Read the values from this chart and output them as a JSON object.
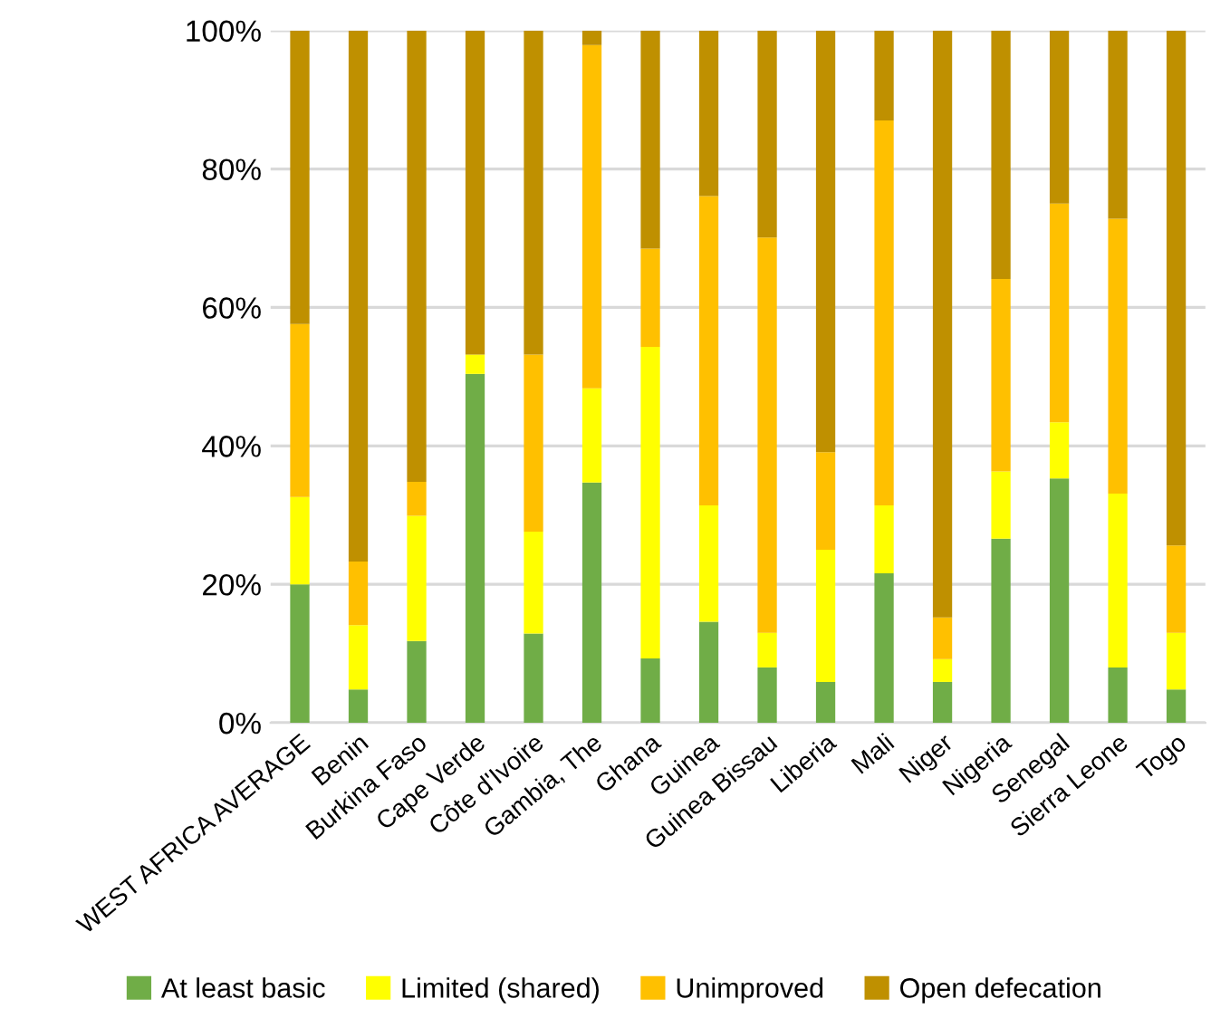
{
  "chart_data": {
    "type": "bar",
    "stacked": true,
    "categories": [
      "WEST AFRICA AVERAGE",
      "Benin",
      "Burkina Faso",
      "Cape Verde",
      "Côte d'Ivoire",
      "Gambia, The",
      "Ghana",
      "Guinea",
      "Guinea Bissau",
      "Liberia",
      "Mali",
      "Niger",
      "Nigeria",
      "Senegal",
      "Sierra Leone",
      "Togo"
    ],
    "series": [
      {
        "name": "At least basic",
        "color": "#70ad47",
        "values": [
          20,
          4.8,
          11.8,
          50.4,
          12.9,
          34.7,
          9.3,
          14.6,
          8,
          5.9,
          21.6,
          5.9,
          26.6,
          35.3,
          8,
          4.8
        ]
      },
      {
        "name": "Limited (shared)",
        "color": "#ffff00",
        "values": [
          12.6,
          9.3,
          18.1,
          2.8,
          14.7,
          13.6,
          45,
          16.8,
          5,
          19.1,
          9.8,
          3.3,
          9.7,
          8.1,
          25.1,
          8.2
        ]
      },
      {
        "name": "Unimproved",
        "color": "#ffc000",
        "values": [
          25,
          9.2,
          4.9,
          0,
          25.6,
          49.6,
          14.2,
          44.7,
          57.1,
          14.1,
          55.6,
          6,
          27.8,
          31.6,
          39.7,
          12.6
        ]
      },
      {
        "name": "Open defecation",
        "color": "#bf9000",
        "values": [
          42.4,
          76.7,
          65.2,
          46.8,
          46.8,
          2.1,
          31.5,
          23.9,
          29.9,
          60.9,
          13,
          84.8,
          35.9,
          25,
          27.2,
          74.4
        ]
      }
    ],
    "ylim": [
      0,
      100
    ],
    "yticks": [
      {
        "value": 0,
        "label": "0%"
      },
      {
        "value": 20,
        "label": "20%"
      },
      {
        "value": 40,
        "label": "40%"
      },
      {
        "value": 60,
        "label": "60%"
      },
      {
        "value": 80,
        "label": "80%"
      },
      {
        "value": 100,
        "label": "100%"
      }
    ],
    "grid": "y",
    "legend": "bottom"
  }
}
